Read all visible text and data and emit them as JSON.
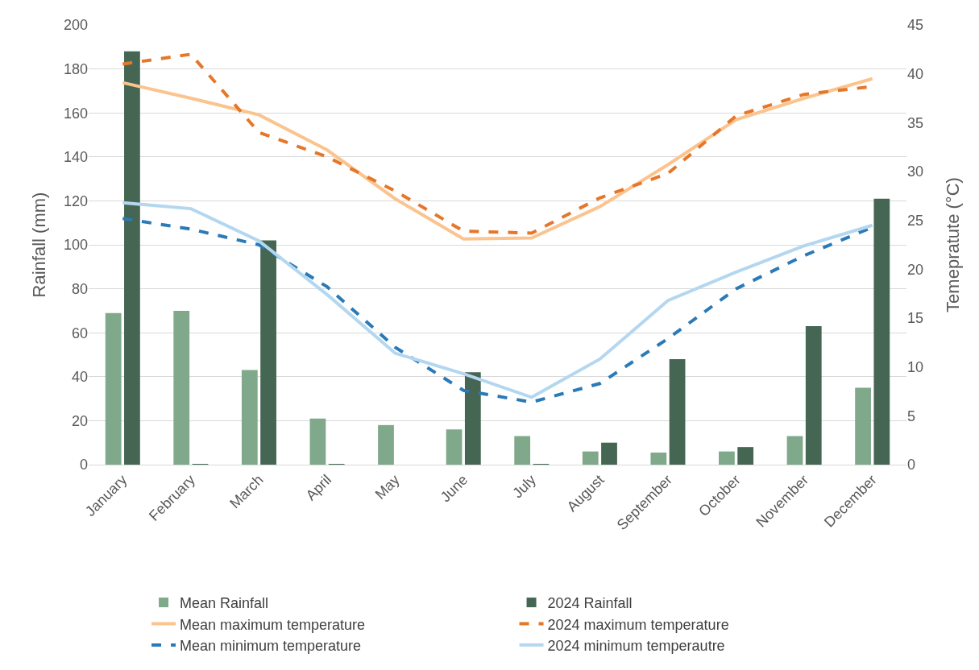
{
  "chart_data": {
    "type": "bar",
    "ylabel": "Rainfall (mm)",
    "y2label": "Temepratute (°C)",
    "categories": [
      "January",
      "February",
      "March",
      "April",
      "May",
      "June",
      "July",
      "August",
      "September",
      "October",
      "November",
      "December"
    ],
    "series": [
      {
        "name": "Mean Rainfall",
        "color": "#7fa98a",
        "values": [
          69,
          70,
          43,
          21,
          18,
          16,
          13,
          6,
          5.5,
          6,
          13,
          35
        ]
      },
      {
        "name": "2024 Rainfall",
        "color": "#456653",
        "values": [
          188,
          0.3,
          102,
          0.3,
          0,
          42,
          0.2,
          10,
          48,
          8,
          63,
          121
        ]
      },
      {
        "name": "Mean maximum temperature",
        "type": "line",
        "axis": "y2",
        "line_style": "solid",
        "color": "#fbc48e",
        "values": [
          39.1,
          37.5,
          35.8,
          32.2,
          27.2,
          23.1,
          23.2,
          26.4,
          30.7,
          35.3,
          37.5,
          39.5
        ]
      },
      {
        "name": "2024 maximum temperature",
        "type": "line",
        "axis": "y2",
        "line_style": "dashed",
        "color": "#e5772b",
        "values": [
          41.0,
          42.0,
          34.0,
          31.5,
          28.0,
          23.9,
          23.7,
          27.3,
          29.8,
          35.7,
          37.9,
          38.7
        ]
      },
      {
        "name": "Mean minimum temperature",
        "type": "line",
        "axis": "y2",
        "line_style": "dashed",
        "color": "#2a7ab8",
        "values": [
          25.2,
          24.1,
          22.5,
          18.2,
          12.0,
          7.6,
          6.4,
          8.3,
          12.9,
          18.0,
          21.4,
          24.3
        ]
      },
      {
        "name": "2024 minimum temperautre",
        "type": "line",
        "axis": "y2",
        "line_style": "solid",
        "color": "#b4d7f0",
        "values": [
          26.8,
          26.2,
          22.9,
          17.4,
          11.4,
          9.3,
          6.9,
          10.8,
          16.8,
          19.7,
          22.4,
          24.5
        ]
      }
    ],
    "ylim": [
      0,
      200
    ],
    "yticks": [
      0,
      20,
      40,
      60,
      80,
      100,
      120,
      140,
      160,
      180,
      200
    ],
    "y2lim": [
      0,
      45
    ],
    "y2ticks": [
      0,
      5,
      10,
      15,
      20,
      25,
      30,
      35,
      40,
      45
    ],
    "grid": "y",
    "legend": "bottom",
    "marker": "none"
  }
}
